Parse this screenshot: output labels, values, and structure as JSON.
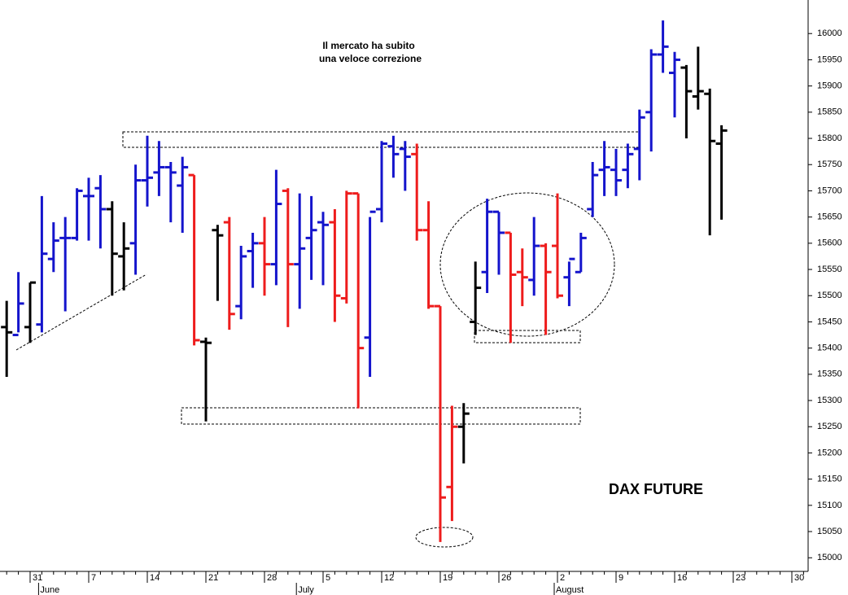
{
  "chart_data": {
    "type": "ohlc",
    "title": "DAX FUTURE",
    "annotation": [
      "Il mercato ha subito",
      "una veloce correzione"
    ],
    "categories": [
      null,
      null,
      "31",
      null,
      null,
      null,
      null,
      "7",
      null,
      null,
      null,
      null,
      "14",
      null,
      null,
      null,
      null,
      "21",
      null,
      null,
      null,
      null,
      "28",
      null,
      null,
      null,
      null,
      "5",
      null,
      null,
      null,
      null,
      "12",
      null,
      null,
      null,
      null,
      "19",
      null,
      null,
      null,
      null,
      "26",
      null,
      null,
      null,
      null,
      "2",
      null,
      null,
      null,
      null,
      "9",
      null,
      null,
      null,
      null,
      "16",
      null,
      null,
      null,
      null,
      "23",
      null,
      null,
      null,
      null,
      "30",
      null
    ],
    "months": [
      null,
      null,
      null,
      "June",
      null,
      null,
      null,
      null,
      null,
      null,
      null,
      null,
      null,
      null,
      null,
      null,
      null,
      null,
      null,
      null,
      null,
      null,
      null,
      null,
      null,
      "July",
      null,
      null,
      null,
      null,
      null,
      null,
      null,
      null,
      null,
      null,
      null,
      null,
      null,
      null,
      null,
      null,
      null,
      null,
      null,
      null,
      null,
      "August",
      null,
      null,
      null,
      null,
      null,
      null,
      null,
      null,
      null,
      null,
      null,
      null,
      null,
      null,
      null,
      null,
      null,
      null,
      null,
      null,
      null
    ],
    "open": [
      15440,
      15425,
      15440,
      15445,
      15570,
      15610,
      15610,
      15690,
      15705,
      15665,
      15575,
      15600,
      15720,
      15735,
      15745,
      15710,
      15730,
      15412,
      15625,
      15640,
      15480,
      15585,
      15600,
      15560,
      15700,
      15560,
      15610,
      15640,
      15640,
      15495,
      15695,
      15420,
      15665,
      15785,
      15780,
      15770,
      15625,
      15480,
      15135,
      15250,
      15450,
      15545,
      15660,
      15620,
      15545,
      15530,
      15595,
      15595,
      15535,
      15545,
      15665,
      15740,
      15740,
      15740,
      15780,
      15850,
      15960,
      15925,
      15935,
      15880,
      15885,
      15790,
      null,
      null,
      null,
      null,
      null,
      null,
      null
    ],
    "high": [
      15490,
      15545,
      15525,
      15690,
      15640,
      15650,
      15705,
      15725,
      15730,
      15680,
      15640,
      15750,
      15805,
      15795,
      15755,
      15765,
      15730,
      15420,
      15635,
      15650,
      15595,
      15620,
      15650,
      15740,
      15705,
      15695,
      15690,
      15660,
      15665,
      15700,
      15695,
      15650,
      15795,
      15805,
      15795,
      15790,
      15680,
      15480,
      15290,
      15295,
      15565,
      15685,
      15660,
      15620,
      15590,
      15650,
      15600,
      15695,
      15565,
      15620,
      15755,
      15795,
      15780,
      15790,
      15855,
      15970,
      16025,
      15965,
      15940,
      15975,
      15895,
      15825,
      null,
      null,
      null,
      null,
      null,
      null,
      null
    ],
    "low": [
      15345,
      15430,
      15410,
      15430,
      15545,
      15470,
      15605,
      15605,
      15590,
      15500,
      15510,
      15540,
      15670,
      15690,
      15640,
      15620,
      15405,
      15260,
      15490,
      15435,
      15455,
      15515,
      15500,
      15520,
      15440,
      15475,
      15530,
      15520,
      15450,
      15485,
      15285,
      15345,
      15640,
      15725,
      15700,
      15605,
      15475,
      15030,
      15070,
      15180,
      15425,
      15505,
      15540,
      15410,
      15480,
      15500,
      15425,
      15495,
      15480,
      15545,
      15650,
      15690,
      15690,
      15705,
      15720,
      15775,
      15925,
      15840,
      15800,
      15855,
      15615,
      15645,
      null,
      null,
      null,
      null,
      null,
      null,
      null
    ],
    "close": [
      15430,
      15485,
      15525,
      15580,
      15605,
      15610,
      15700,
      15690,
      15665,
      15580,
      15590,
      15720,
      15725,
      15745,
      15735,
      15745,
      15415,
      15410,
      15615,
      15465,
      15575,
      15600,
      15560,
      15675,
      15560,
      15590,
      15625,
      15635,
      15500,
      15695,
      15400,
      15660,
      15790,
      15770,
      15765,
      15625,
      15480,
      15115,
      15250,
      15275,
      15515,
      15660,
      15620,
      15540,
      15535,
      15595,
      15545,
      15500,
      15570,
      15610,
      15730,
      15745,
      15720,
      15770,
      15840,
      15960,
      15975,
      15950,
      15890,
      15890,
      15795,
      15815,
      null,
      null,
      null,
      null,
      null,
      null,
      null
    ],
    "colors": [
      "#000000",
      "#1414cc",
      "#000000",
      "#1414cc",
      "#1414cc",
      "#1414cc",
      "#1414cc",
      "#1414cc",
      "#1414cc",
      "#000000",
      "#000000",
      "#1414cc",
      "#1414cc",
      "#1414cc",
      "#1414cc",
      "#1414cc",
      "#ee1c1c",
      "#000000",
      "#000000",
      "#ee1c1c",
      "#1414cc",
      "#1414cc",
      "#ee1c1c",
      "#1414cc",
      "#ee1c1c",
      "#1414cc",
      "#1414cc",
      "#1414cc",
      "#ee1c1c",
      "#ee1c1c",
      "#ee1c1c",
      "#1414cc",
      "#1414cc",
      "#1414cc",
      "#1414cc",
      "#ee1c1c",
      "#ee1c1c",
      "#ee1c1c",
      "#ee1c1c",
      "#000000",
      "#000000",
      "#1414cc",
      "#1414cc",
      "#ee1c1c",
      "#ee1c1c",
      "#1414cc",
      "#ee1c1c",
      "#ee1c1c",
      "#1414cc",
      "#1414cc",
      "#1414cc",
      "#1414cc",
      "#1414cc",
      "#1414cc",
      "#1414cc",
      "#1414cc",
      "#1414cc",
      "#1414cc",
      "#000000",
      "#000000",
      "#000000",
      "#000000",
      null,
      null,
      null,
      null,
      null,
      null,
      null
    ],
    "ylim": [
      14974,
      16064
    ],
    "yticks": [
      15000,
      15050,
      15100,
      15150,
      15200,
      15250,
      15300,
      15350,
      15400,
      15450,
      15500,
      15550,
      15600,
      15650,
      15700,
      15750,
      15800,
      15850,
      15900,
      15950,
      16000
    ],
    "y_axis_side": "right"
  }
}
